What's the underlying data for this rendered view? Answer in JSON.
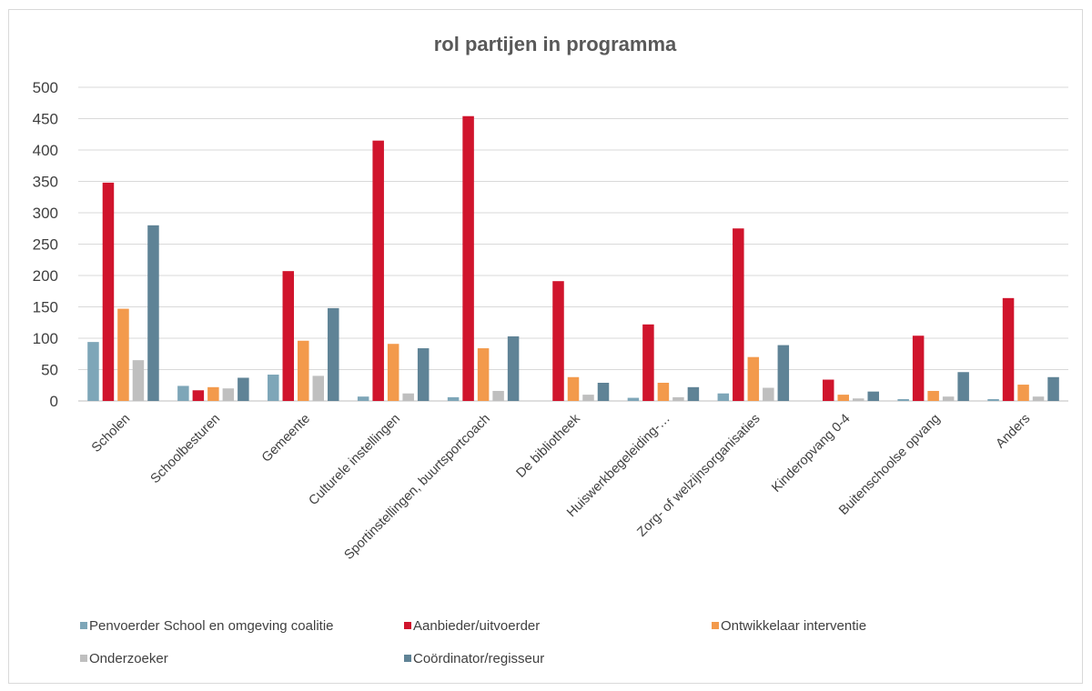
{
  "chart_data": {
    "type": "bar",
    "title": "rol partijen in programma",
    "xlabel": "",
    "ylabel": "",
    "ylim": [
      0,
      500
    ],
    "yticks": [
      0,
      50,
      100,
      150,
      200,
      250,
      300,
      350,
      400,
      450,
      500
    ],
    "grid": true,
    "legend_position": "bottom",
    "categories": [
      "Scholen",
      "Schoolbesturen",
      "Gemeente",
      "Culturele instellingen",
      "Sportinstellingen, buurtsportcoach",
      "De bibliotheek",
      "Huiswerkbegeleiding-…",
      "Zorg- of welzijnsorganisaties",
      "Kinderopvang 0-4",
      "Buitenschoolse opvang",
      "Anders"
    ],
    "series": [
      {
        "name": "Penvoerder School en omgeving coalitie",
        "color": "#7ea6b8",
        "values": [
          94,
          24,
          42,
          7,
          6,
          0,
          5,
          12,
          0,
          3,
          3
        ]
      },
      {
        "name": "Aanbieder/uitvoerder",
        "color": "#d0142c",
        "values": [
          348,
          17,
          207,
          415,
          454,
          191,
          122,
          275,
          34,
          104,
          164
        ]
      },
      {
        "name": "Ontwikkelaar interventie",
        "color": "#f39a4c",
        "values": [
          147,
          22,
          96,
          91,
          84,
          38,
          29,
          70,
          10,
          16,
          26
        ]
      },
      {
        "name": "Onderzoeker",
        "color": "#bfbfbf",
        "values": [
          65,
          20,
          40,
          12,
          16,
          10,
          6,
          21,
          4,
          7,
          7
        ]
      },
      {
        "name": "Coördinator/regisseur",
        "color": "#5f8396",
        "values": [
          280,
          37,
          148,
          84,
          103,
          29,
          22,
          89,
          15,
          46,
          38
        ]
      }
    ]
  }
}
